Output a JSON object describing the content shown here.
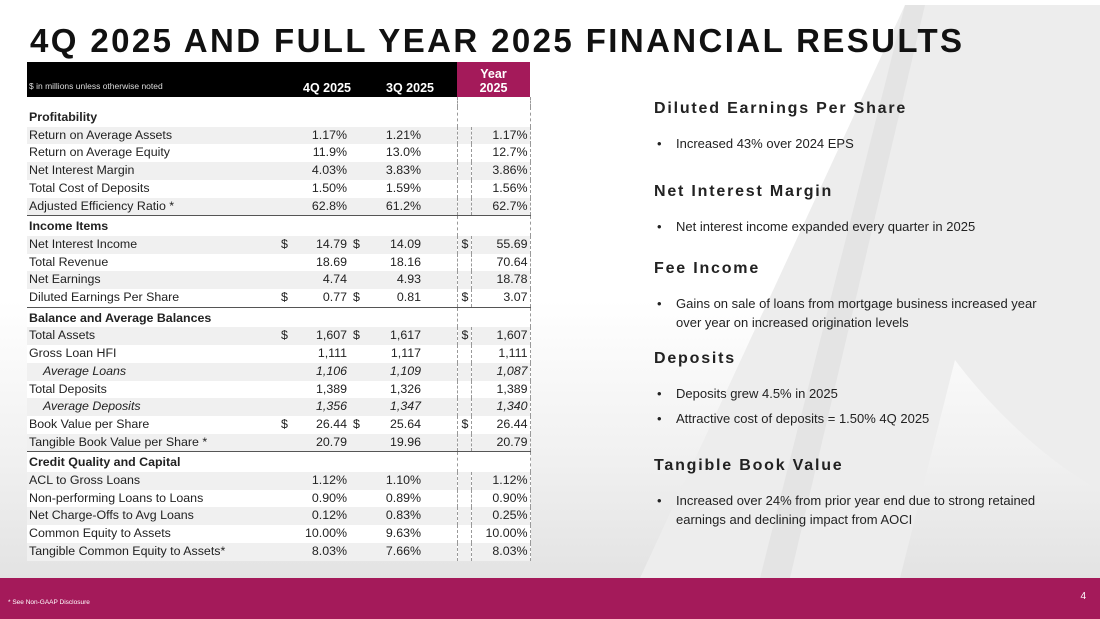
{
  "title": "4Q 2025 AND FULL YEAR 2025 FINANCIAL RESULTS",
  "table": {
    "note": "$ in millions unless otherwise noted",
    "col_q4": "4Q 2025",
    "col_q3": "3Q 2025",
    "col_year_1": "Year",
    "col_year_2": "2025",
    "sections": [
      {
        "title": "Profitability",
        "rows": [
          {
            "label": "Return on Average Assets",
            "q4": "1.17%",
            "q3": "1.21%",
            "year": "1.17%"
          },
          {
            "label": "Return on Average Equity",
            "q4": "11.9%",
            "q3": "13.0%",
            "year": "12.7%"
          },
          {
            "label": "Net Interest Margin",
            "q4": "4.03%",
            "q3": "3.83%",
            "year": "3.86%"
          },
          {
            "label": "Total Cost of Deposits",
            "q4": "1.50%",
            "q3": "1.59%",
            "year": "1.56%"
          },
          {
            "label": "Adjusted Efficiency Ratio *",
            "q4": "62.8%",
            "q3": "61.2%",
            "year": "62.7%"
          }
        ]
      },
      {
        "title": "Income Items",
        "rows": [
          {
            "label": "Net Interest Income",
            "cur": "$",
            "q4": "14.79",
            "q3": "14.09",
            "year": "55.69"
          },
          {
            "label": "Total Revenue",
            "q4": "18.69",
            "q3": "18.16",
            "year": "70.64"
          },
          {
            "label": "Net Earnings",
            "q4": "4.74",
            "q3": "4.93",
            "year": "18.78"
          },
          {
            "label": "Diluted Earnings Per Share",
            "cur": "$",
            "q4": "0.77",
            "q3": "0.81",
            "year": "3.07"
          }
        ]
      },
      {
        "title": "Balance and Average Balances",
        "rows": [
          {
            "label": "Total Assets",
            "cur": "$",
            "q4": "1,607",
            "q3": "1,617",
            "year": "1,607"
          },
          {
            "label": "Gross Loan HFI",
            "q4": "1,111",
            "q3": "1,117",
            "year": "1,111"
          },
          {
            "label": "Average Loans",
            "italic": true,
            "q4": "1,106",
            "q3": "1,109",
            "year": "1,087"
          },
          {
            "label": "Total Deposits",
            "q4": "1,389",
            "q3": "1,326",
            "year": "1,389"
          },
          {
            "label": "Average Deposits",
            "italic": true,
            "q4": "1,356",
            "q3": "1,347",
            "year": "1,340"
          },
          {
            "label": "Book Value per Share",
            "cur": "$",
            "q4": "26.44",
            "q3": "25.64",
            "year": "26.44"
          },
          {
            "label": "Tangible Book Value per Share *",
            "q4": "20.79",
            "q3": "19.96",
            "year": "20.79"
          }
        ]
      },
      {
        "title": "Credit Quality and Capital",
        "rows": [
          {
            "label": "ACL to Gross Loans",
            "q4": "1.12%",
            "q3": "1.10%",
            "year": "1.12%"
          },
          {
            "label": "Non-performing Loans to Loans",
            "q4": "0.90%",
            "q3": "0.89%",
            "year": "0.90%"
          },
          {
            "label": "Net Charge-Offs to Avg Loans",
            "q4": "0.12%",
            "q3": "0.83%",
            "year": "0.25%"
          },
          {
            "label": "Common Equity to Assets",
            "q4": "10.00%",
            "q3": "9.63%",
            "year": "10.00%"
          },
          {
            "label": "Tangible Common Equity to Assets*",
            "q4": "8.03%",
            "q3": "7.66%",
            "year": "8.03%"
          }
        ]
      }
    ]
  },
  "highlights": [
    {
      "heading": "Diluted Earnings Per Share",
      "bullets": [
        "Increased 43% over 2024 EPS"
      ]
    },
    {
      "heading": "Net Interest Margin",
      "bullets": [
        "Net interest income expanded every quarter in 2025"
      ]
    },
    {
      "heading": "Fee Income",
      "bullets": [
        "Gains on sale of loans from mortgage business increased year over year on increased origination levels"
      ]
    },
    {
      "heading": "Deposits",
      "bullets": [
        "Deposits grew 4.5% in 2025",
        "Attractive cost of deposits = 1.50% 4Q 2025"
      ]
    },
    {
      "heading": "Tangible Book Value",
      "bullets": [
        "Increased over 24% from prior year end due to strong retained earnings and declining impact from AOCI"
      ]
    }
  ],
  "footer": {
    "footnote": "*  See Non-GAAP Disclosure",
    "page_number": "4"
  },
  "colors": {
    "brand": "#a41a5a",
    "header_bg": "#000000",
    "shade": "#f0f0f0"
  }
}
